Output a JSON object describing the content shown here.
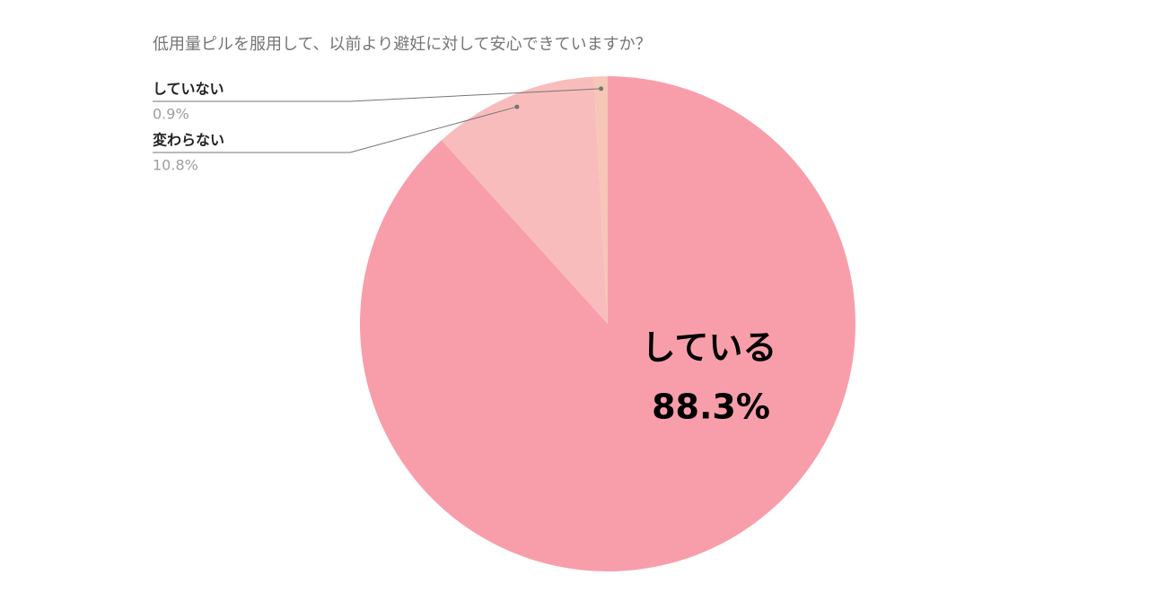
{
  "chart_data": {
    "type": "pie",
    "title": "低用量ピルを服用して、以前より避妊に対して安心できていますか？",
    "categories": [
      "している",
      "変わらない",
      "していない"
    ],
    "values": [
      88.3,
      10.8,
      0.9
    ],
    "value_labels": [
      "88.3%",
      "10.8%",
      "0.9%"
    ],
    "colors": [
      "#f89eab",
      "#f9bcbd",
      "#f6c6b6"
    ]
  }
}
